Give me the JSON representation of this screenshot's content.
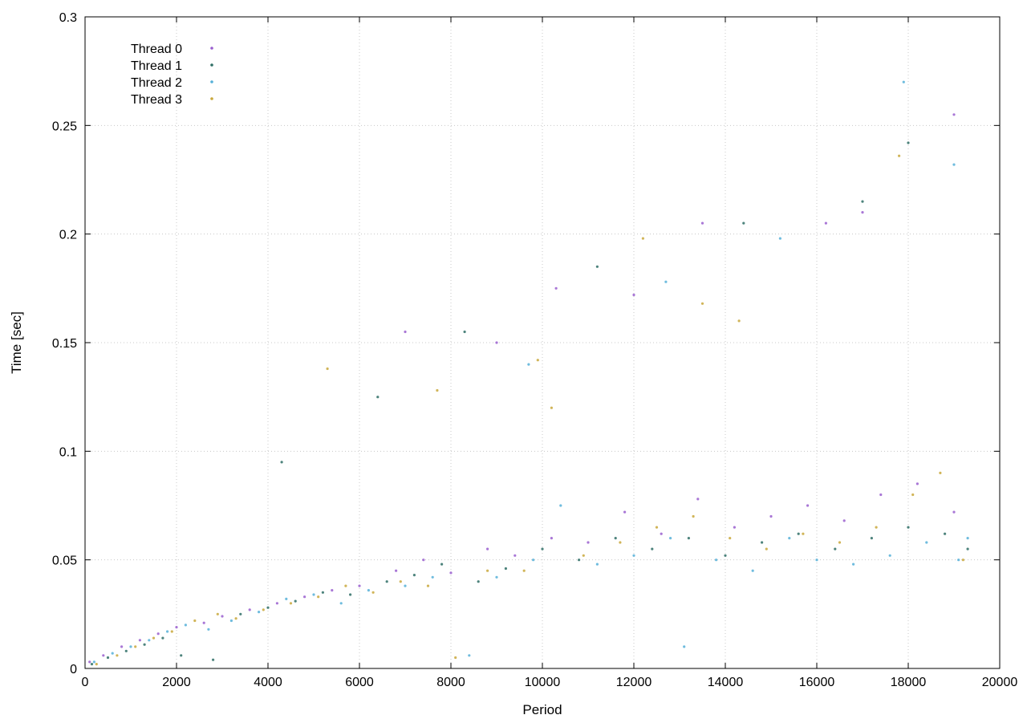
{
  "chart_data": {
    "type": "scatter",
    "title": "",
    "xlabel": "Period",
    "ylabel": "Time [sec]",
    "xlim": [
      0,
      20000
    ],
    "ylim": [
      0,
      0.3
    ],
    "x_ticks": [
      0,
      2000,
      4000,
      6000,
      8000,
      10000,
      12000,
      14000,
      16000,
      18000,
      20000
    ],
    "y_ticks": [
      0,
      0.05,
      0.1,
      0.15,
      0.2,
      0.25,
      0.3
    ],
    "x_tick_labels": [
      "0",
      "2000",
      "4000",
      "6000",
      "8000",
      "10000",
      "12000",
      "14000",
      "16000",
      "18000",
      "20000"
    ],
    "y_tick_labels": [
      "0",
      "0.05",
      "0.1",
      "0.15",
      "0.2",
      "0.25",
      "0.3"
    ],
    "grid": true,
    "legend_position": "top-left",
    "series": [
      {
        "name": "Thread 0",
        "color": "#9a5fcf",
        "points": [
          [
            100,
            0.003
          ],
          [
            400,
            0.006
          ],
          [
            800,
            0.01
          ],
          [
            1200,
            0.013
          ],
          [
            1600,
            0.016
          ],
          [
            2000,
            0.019
          ],
          [
            2600,
            0.021
          ],
          [
            3000,
            0.024
          ],
          [
            3600,
            0.027
          ],
          [
            4200,
            0.03
          ],
          [
            4800,
            0.033
          ],
          [
            5400,
            0.036
          ],
          [
            6000,
            0.038
          ],
          [
            6800,
            0.045
          ],
          [
            7400,
            0.05
          ],
          [
            8000,
            0.044
          ],
          [
            8800,
            0.055
          ],
          [
            9400,
            0.052
          ],
          [
            10200,
            0.06
          ],
          [
            11000,
            0.058
          ],
          [
            11800,
            0.072
          ],
          [
            12600,
            0.062
          ],
          [
            13400,
            0.078
          ],
          [
            14200,
            0.065
          ],
          [
            15000,
            0.07
          ],
          [
            15800,
            0.075
          ],
          [
            16600,
            0.068
          ],
          [
            17400,
            0.08
          ],
          [
            18200,
            0.085
          ],
          [
            19000,
            0.072
          ],
          [
            7000,
            0.155
          ],
          [
            9000,
            0.15
          ],
          [
            10300,
            0.175
          ],
          [
            12000,
            0.172
          ],
          [
            13500,
            0.205
          ],
          [
            16200,
            0.205
          ],
          [
            17000,
            0.21
          ],
          [
            19000,
            0.255
          ]
        ]
      },
      {
        "name": "Thread 1",
        "color": "#2f6f66",
        "points": [
          [
            150,
            0.002
          ],
          [
            500,
            0.005
          ],
          [
            900,
            0.008
          ],
          [
            1300,
            0.011
          ],
          [
            1700,
            0.014
          ],
          [
            2100,
            0.006
          ],
          [
            2800,
            0.004
          ],
          [
            3400,
            0.025
          ],
          [
            4000,
            0.028
          ],
          [
            4600,
            0.031
          ],
          [
            5200,
            0.035
          ],
          [
            5800,
            0.034
          ],
          [
            6600,
            0.04
          ],
          [
            7200,
            0.043
          ],
          [
            7800,
            0.048
          ],
          [
            8600,
            0.04
          ],
          [
            9200,
            0.046
          ],
          [
            10000,
            0.055
          ],
          [
            10800,
            0.05
          ],
          [
            11600,
            0.06
          ],
          [
            12400,
            0.055
          ],
          [
            13200,
            0.06
          ],
          [
            14000,
            0.052
          ],
          [
            14800,
            0.058
          ],
          [
            15600,
            0.062
          ],
          [
            16400,
            0.055
          ],
          [
            17200,
            0.06
          ],
          [
            18000,
            0.065
          ],
          [
            18800,
            0.062
          ],
          [
            19300,
            0.055
          ],
          [
            4300,
            0.095
          ],
          [
            6400,
            0.125
          ],
          [
            8300,
            0.155
          ],
          [
            11200,
            0.185
          ],
          [
            14400,
            0.205
          ],
          [
            17000,
            0.215
          ],
          [
            18000,
            0.242
          ]
        ]
      },
      {
        "name": "Thread 2",
        "color": "#56b0d8",
        "points": [
          [
            200,
            0.003
          ],
          [
            600,
            0.007
          ],
          [
            1000,
            0.01
          ],
          [
            1400,
            0.013
          ],
          [
            1800,
            0.017
          ],
          [
            2200,
            0.02
          ],
          [
            2700,
            0.018
          ],
          [
            3200,
            0.022
          ],
          [
            3800,
            0.026
          ],
          [
            4400,
            0.032
          ],
          [
            5000,
            0.034
          ],
          [
            5600,
            0.03
          ],
          [
            6200,
            0.036
          ],
          [
            7000,
            0.038
          ],
          [
            7600,
            0.042
          ],
          [
            8400,
            0.006
          ],
          [
            9000,
            0.042
          ],
          [
            9800,
            0.05
          ],
          [
            10400,
            0.075
          ],
          [
            11200,
            0.048
          ],
          [
            12000,
            0.052
          ],
          [
            12800,
            0.06
          ],
          [
            13100,
            0.01
          ],
          [
            13800,
            0.05
          ],
          [
            14600,
            0.045
          ],
          [
            15400,
            0.06
          ],
          [
            16000,
            0.05
          ],
          [
            16800,
            0.048
          ],
          [
            17600,
            0.052
          ],
          [
            18400,
            0.058
          ],
          [
            19100,
            0.05
          ],
          [
            19300,
            0.06
          ],
          [
            9700,
            0.14
          ],
          [
            12700,
            0.178
          ],
          [
            15200,
            0.198
          ],
          [
            17900,
            0.27
          ],
          [
            19000,
            0.232
          ]
        ]
      },
      {
        "name": "Thread 3",
        "color": "#c9a83c",
        "points": [
          [
            250,
            0.002
          ],
          [
            700,
            0.006
          ],
          [
            1100,
            0.01
          ],
          [
            1500,
            0.014
          ],
          [
            1900,
            0.017
          ],
          [
            2400,
            0.022
          ],
          [
            2900,
            0.025
          ],
          [
            3300,
            0.023
          ],
          [
            3900,
            0.027
          ],
          [
            4500,
            0.03
          ],
          [
            5100,
            0.033
          ],
          [
            5700,
            0.038
          ],
          [
            6300,
            0.035
          ],
          [
            6900,
            0.04
          ],
          [
            7500,
            0.038
          ],
          [
            8100,
            0.005
          ],
          [
            8800,
            0.045
          ],
          [
            9600,
            0.045
          ],
          [
            10200,
            0.12
          ],
          [
            10900,
            0.052
          ],
          [
            11700,
            0.058
          ],
          [
            12500,
            0.065
          ],
          [
            13300,
            0.07
          ],
          [
            14100,
            0.06
          ],
          [
            14900,
            0.055
          ],
          [
            15700,
            0.062
          ],
          [
            16500,
            0.058
          ],
          [
            17300,
            0.065
          ],
          [
            18100,
            0.08
          ],
          [
            18700,
            0.09
          ],
          [
            19200,
            0.05
          ],
          [
            5300,
            0.138
          ],
          [
            7700,
            0.128
          ],
          [
            9900,
            0.142
          ],
          [
            12200,
            0.198
          ],
          [
            13500,
            0.168
          ],
          [
            14300,
            0.16
          ],
          [
            17800,
            0.236
          ]
        ]
      }
    ]
  }
}
